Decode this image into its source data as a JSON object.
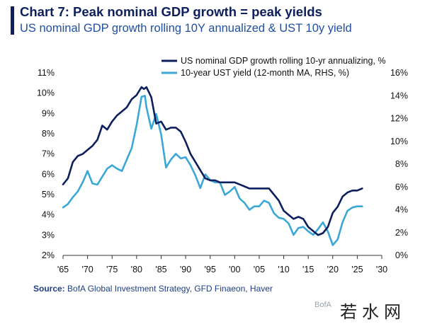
{
  "title": "Chart 7: Peak nominal GDP growth = peak yields",
  "subtitle": "US nominal GDP growth rolling 10Y annualized & UST 10y yield",
  "source_label": "Source:",
  "source_text": "BofA Global Investment Strategy, GFD Finaeon, Haver",
  "brand": "BofA",
  "watermark": "若水网",
  "chart_data": {
    "type": "line",
    "title": "Peak nominal GDP growth = peak yields",
    "xlabel": "",
    "ylabel": "",
    "xlim": [
      1965,
      2030
    ],
    "ylim_left": [
      2,
      11
    ],
    "ylim_right": [
      0,
      16
    ],
    "x_ticks": [
      1965,
      1970,
      1975,
      1980,
      1985,
      1990,
      1995,
      2000,
      2005,
      2010,
      2015,
      2020,
      2025,
      2030
    ],
    "x_tick_labels": [
      "'65",
      "'70",
      "'75",
      "'80",
      "'85",
      "'90",
      "'95",
      "'00",
      "'05",
      "'10",
      "'15",
      "'20",
      "'25",
      "'30"
    ],
    "y_left_ticks": [
      2,
      3,
      4,
      5,
      6,
      7,
      8,
      9,
      10,
      11
    ],
    "y_left_tick_labels": [
      "2%",
      "3%",
      "4%",
      "5%",
      "6%",
      "7%",
      "8%",
      "9%",
      "10%",
      "11%"
    ],
    "y_right_ticks": [
      0,
      2,
      4,
      6,
      8,
      10,
      12,
      14,
      16
    ],
    "y_right_tick_labels": [
      "0%",
      "2%",
      "4%",
      "6%",
      "8%",
      "10%",
      "12%",
      "14%",
      "16%"
    ],
    "grid": false,
    "legend_position": "top-right",
    "series": [
      {
        "name": "US nominal GDP growth rolling 10-yr annualizing, %",
        "axis": "left",
        "color": "#0d1f5e",
        "points": [
          [
            1965.0,
            5.5
          ],
          [
            1966.0,
            5.8
          ],
          [
            1967.0,
            6.6
          ],
          [
            1968.0,
            6.9
          ],
          [
            1969.0,
            7.0
          ],
          [
            1970.0,
            7.2
          ],
          [
            1971.0,
            7.4
          ],
          [
            1972.0,
            7.7
          ],
          [
            1973.0,
            8.4
          ],
          [
            1974.0,
            8.2
          ],
          [
            1975.0,
            8.6
          ],
          [
            1976.0,
            8.9
          ],
          [
            1977.0,
            9.1
          ],
          [
            1978.0,
            9.3
          ],
          [
            1979.0,
            9.7
          ],
          [
            1980.0,
            9.9
          ],
          [
            1981.0,
            10.3
          ],
          [
            1981.5,
            10.2
          ],
          [
            1982.0,
            10.3
          ],
          [
            1983.0,
            9.8
          ],
          [
            1984.0,
            8.5
          ],
          [
            1985.0,
            8.6
          ],
          [
            1986.0,
            8.2
          ],
          [
            1987.0,
            8.3
          ],
          [
            1988.0,
            8.3
          ],
          [
            1989.0,
            8.1
          ],
          [
            1990.0,
            7.6
          ],
          [
            1991.0,
            7.0
          ],
          [
            1992.0,
            6.6
          ],
          [
            1993.0,
            6.2
          ],
          [
            1994.0,
            5.8
          ],
          [
            1995.0,
            5.7
          ],
          [
            1996.0,
            5.7
          ],
          [
            1997.0,
            5.6
          ],
          [
            1998.0,
            5.6
          ],
          [
            1999.0,
            5.6
          ],
          [
            2000.0,
            5.6
          ],
          [
            2001.0,
            5.5
          ],
          [
            2002.0,
            5.4
          ],
          [
            2003.0,
            5.3
          ],
          [
            2004.0,
            5.3
          ],
          [
            2005.0,
            5.3
          ],
          [
            2006.0,
            5.3
          ],
          [
            2007.0,
            5.3
          ],
          [
            2008.0,
            5.0
          ],
          [
            2009.0,
            4.7
          ],
          [
            2010.0,
            4.2
          ],
          [
            2011.0,
            4.0
          ],
          [
            2012.0,
            3.8
          ],
          [
            2013.0,
            3.9
          ],
          [
            2014.0,
            3.8
          ],
          [
            2015.0,
            3.4
          ],
          [
            2016.0,
            3.2
          ],
          [
            2017.0,
            3.0
          ],
          [
            2018.0,
            3.1
          ],
          [
            2019.0,
            3.4
          ],
          [
            2020.0,
            4.1
          ],
          [
            2021.0,
            4.4
          ],
          [
            2022.0,
            4.9
          ],
          [
            2023.0,
            5.1
          ],
          [
            2024.0,
            5.2
          ],
          [
            2025.0,
            5.2
          ],
          [
            2026.0,
            5.3
          ]
        ]
      },
      {
        "name": "10-year UST yield (12-month MA, RHS, %)",
        "axis": "right",
        "color": "#3aa7d6",
        "points": [
          [
            1965.0,
            4.2
          ],
          [
            1966.0,
            4.5
          ],
          [
            1967.0,
            5.1
          ],
          [
            1968.0,
            5.6
          ],
          [
            1969.0,
            6.4
          ],
          [
            1970.0,
            7.4
          ],
          [
            1971.0,
            6.3
          ],
          [
            1972.0,
            6.2
          ],
          [
            1973.0,
            6.9
          ],
          [
            1974.0,
            7.6
          ],
          [
            1975.0,
            7.9
          ],
          [
            1976.0,
            7.6
          ],
          [
            1977.0,
            7.4
          ],
          [
            1978.0,
            8.4
          ],
          [
            1979.0,
            9.4
          ],
          [
            1980.0,
            11.4
          ],
          [
            1981.0,
            13.9
          ],
          [
            1981.7,
            14.0
          ],
          [
            1982.0,
            13.0
          ],
          [
            1983.0,
            11.1
          ],
          [
            1984.0,
            12.4
          ],
          [
            1985.0,
            10.6
          ],
          [
            1986.0,
            7.7
          ],
          [
            1987.0,
            8.4
          ],
          [
            1988.0,
            8.9
          ],
          [
            1989.0,
            8.5
          ],
          [
            1990.0,
            8.6
          ],
          [
            1991.0,
            7.9
          ],
          [
            1992.0,
            7.0
          ],
          [
            1993.0,
            5.9
          ],
          [
            1994.0,
            7.1
          ],
          [
            1995.0,
            6.6
          ],
          [
            1996.0,
            6.4
          ],
          [
            1997.0,
            6.4
          ],
          [
            1998.0,
            5.3
          ],
          [
            1999.0,
            5.6
          ],
          [
            2000.0,
            6.0
          ],
          [
            2001.0,
            5.0
          ],
          [
            2002.0,
            4.6
          ],
          [
            2003.0,
            4.0
          ],
          [
            2004.0,
            4.3
          ],
          [
            2005.0,
            4.3
          ],
          [
            2006.0,
            4.8
          ],
          [
            2007.0,
            4.6
          ],
          [
            2008.0,
            3.7
          ],
          [
            2009.0,
            3.3
          ],
          [
            2010.0,
            3.2
          ],
          [
            2011.0,
            2.8
          ],
          [
            2012.0,
            1.8
          ],
          [
            2013.0,
            2.4
          ],
          [
            2014.0,
            2.5
          ],
          [
            2015.0,
            2.1
          ],
          [
            2016.0,
            1.8
          ],
          [
            2017.0,
            2.3
          ],
          [
            2018.0,
            2.9
          ],
          [
            2019.0,
            2.1
          ],
          [
            2020.0,
            0.9
          ],
          [
            2021.0,
            1.4
          ],
          [
            2022.0,
            2.9
          ],
          [
            2023.0,
            3.9
          ],
          [
            2024.0,
            4.2
          ],
          [
            2025.0,
            4.3
          ],
          [
            2026.0,
            4.3
          ]
        ]
      }
    ]
  }
}
